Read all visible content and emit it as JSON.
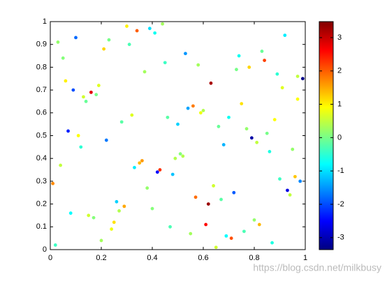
{
  "chart_data": {
    "type": "scatter",
    "colormap": "jet",
    "x": [
      0.03,
      0.12,
      0.25,
      0.37,
      0.48,
      0.59,
      0.71,
      0.83,
      0.94,
      0.07,
      0.18,
      0.29,
      0.41,
      0.52,
      0.63,
      0.76,
      0.88,
      0.98,
      0.05,
      0.15,
      0.33,
      0.44,
      0.56,
      0.67,
      0.79,
      0.91,
      0.02,
      0.21,
      0.38,
      0.5,
      0.61,
      0.73,
      0.86,
      0.97,
      0.1,
      0.27,
      0.35,
      0.46,
      0.58,
      0.69,
      0.81,
      0.93,
      0.06,
      0.17,
      0.31,
      0.43,
      0.54,
      0.65,
      0.77,
      0.89,
      0.01,
      0.14,
      0.24,
      0.39,
      0.49,
      0.62,
      0.74,
      0.85,
      0.96,
      0.09,
      0.2,
      0.32,
      0.45,
      0.57,
      0.68,
      0.8,
      0.92,
      0.04,
      0.16,
      0.28,
      0.4,
      0.53,
      0.64,
      0.75,
      0.87,
      0.99,
      0.11,
      0.23,
      0.36,
      0.47,
      0.6,
      0.72,
      0.84,
      0.95,
      0.08,
      0.19,
      0.3,
      0.42,
      0.55,
      0.66,
      0.78,
      0.9,
      0.13,
      0.26,
      0.34,
      0.51,
      0.7,
      0.82,
      0.97,
      0.22
    ],
    "values": [
      0.91,
      0.45,
      0.12,
      0.78,
      0.33,
      0.6,
      0.05,
      0.87,
      0.24,
      0.52,
      0.68,
      0.19,
      0.95,
      0.41,
      0.73,
      0.08,
      0.57,
      0.3,
      0.84,
      0.15,
      0.36,
      0.99,
      0.63,
      0.22,
      0.49,
      0.71,
      0.02,
      0.88,
      0.27,
      0.55,
      0.11,
      0.79,
      0.43,
      0.66,
      0.93,
      0.17,
      0.38,
      0.58,
      0.81,
      0.06,
      0.47,
      0.26,
      0.74,
      0.14,
      0.9,
      0.35,
      0.62,
      0.01,
      0.53,
      0.77,
      0.29,
      0.65,
      0.09,
      0.97,
      0.4,
      0.2,
      0.85,
      0.51,
      0.32,
      0.7,
      0.04,
      0.59,
      0.82,
      0.23,
      0.46,
      0.13,
      0.94,
      0.37,
      0.69,
      0.56,
      0.18,
      0.86,
      0.28,
      0.64,
      0.03,
      0.75,
      0.5,
      0.92,
      0.39,
      0.1,
      0.61,
      0.25,
      0.83,
      0.44,
      0.16,
      0.72,
      0.98,
      0.34,
      0.07,
      0.54,
      0.8,
      0.31,
      0.67,
      0.21,
      0.96,
      0.42,
      0.58,
      0.11,
      0.76,
      0.48
    ],
    "color_values": [
      0.2,
      -0.5,
      1.1,
      0.3,
      -1.2,
      0.8,
      2.1,
      -0.1,
      0.5,
      -2.3,
      0.0,
      1.5,
      -0.7,
      0.4,
      3.2,
      -0.3,
      0.9,
      -1.6,
      0.1,
      0.6,
      -0.9,
      0.3,
      1.8,
      -0.2,
      -3.1,
      0.7,
      -0.4,
      1.2,
      0.2,
      -1.1,
      2.6,
      0.0,
      -0.6,
      0.9,
      -1.8,
      0.4,
      1.4,
      -0.2,
      0.3,
      -0.8,
      0.5,
      -2.7,
      1.0,
      0.1,
      -0.3,
      2.3,
      -1.4,
      0.6,
      0.2,
      -0.5,
      1.7,
      -0.1,
      0.8,
      -1.0,
      0.4,
      3.3,
      -0.7,
      0.0,
      1.3,
      -2.0,
      0.3,
      0.7,
      -0.4,
      1.9,
      -1.3,
      0.2,
      -0.9,
      0.5,
      2.8,
      -0.2,
      0.1,
      -1.5,
      0.6,
      1.1,
      -0.6,
      -3.3,
      0.9,
      0.0,
      1.6,
      -0.3,
      0.4,
      -1.9,
      2.2,
      0.2,
      -0.8,
      0.7,
      1.0,
      -2.5,
      0.3,
      -0.1,
      1.2,
      -0.4,
      0.6,
      -1.1,
      2.0,
      0.1,
      -0.7,
      1.4,
      0.5,
      -1.7
    ],
    "xlim": [
      0,
      1
    ],
    "xticks": [
      0,
      0.2,
      0.4,
      0.6,
      0.8,
      1
    ],
    "ylim": [
      0,
      1
    ],
    "yticks": [
      0,
      0.1,
      0.2,
      0.3,
      0.4,
      0.5,
      0.6,
      0.7,
      0.8,
      0.9,
      1
    ],
    "clim": [
      -3.36,
      3.48
    ],
    "cticks": [
      -3,
      -2,
      -1,
      0,
      1,
      2,
      3
    ],
    "watermark": "https://blog.csdn.net/milkbusy"
  }
}
